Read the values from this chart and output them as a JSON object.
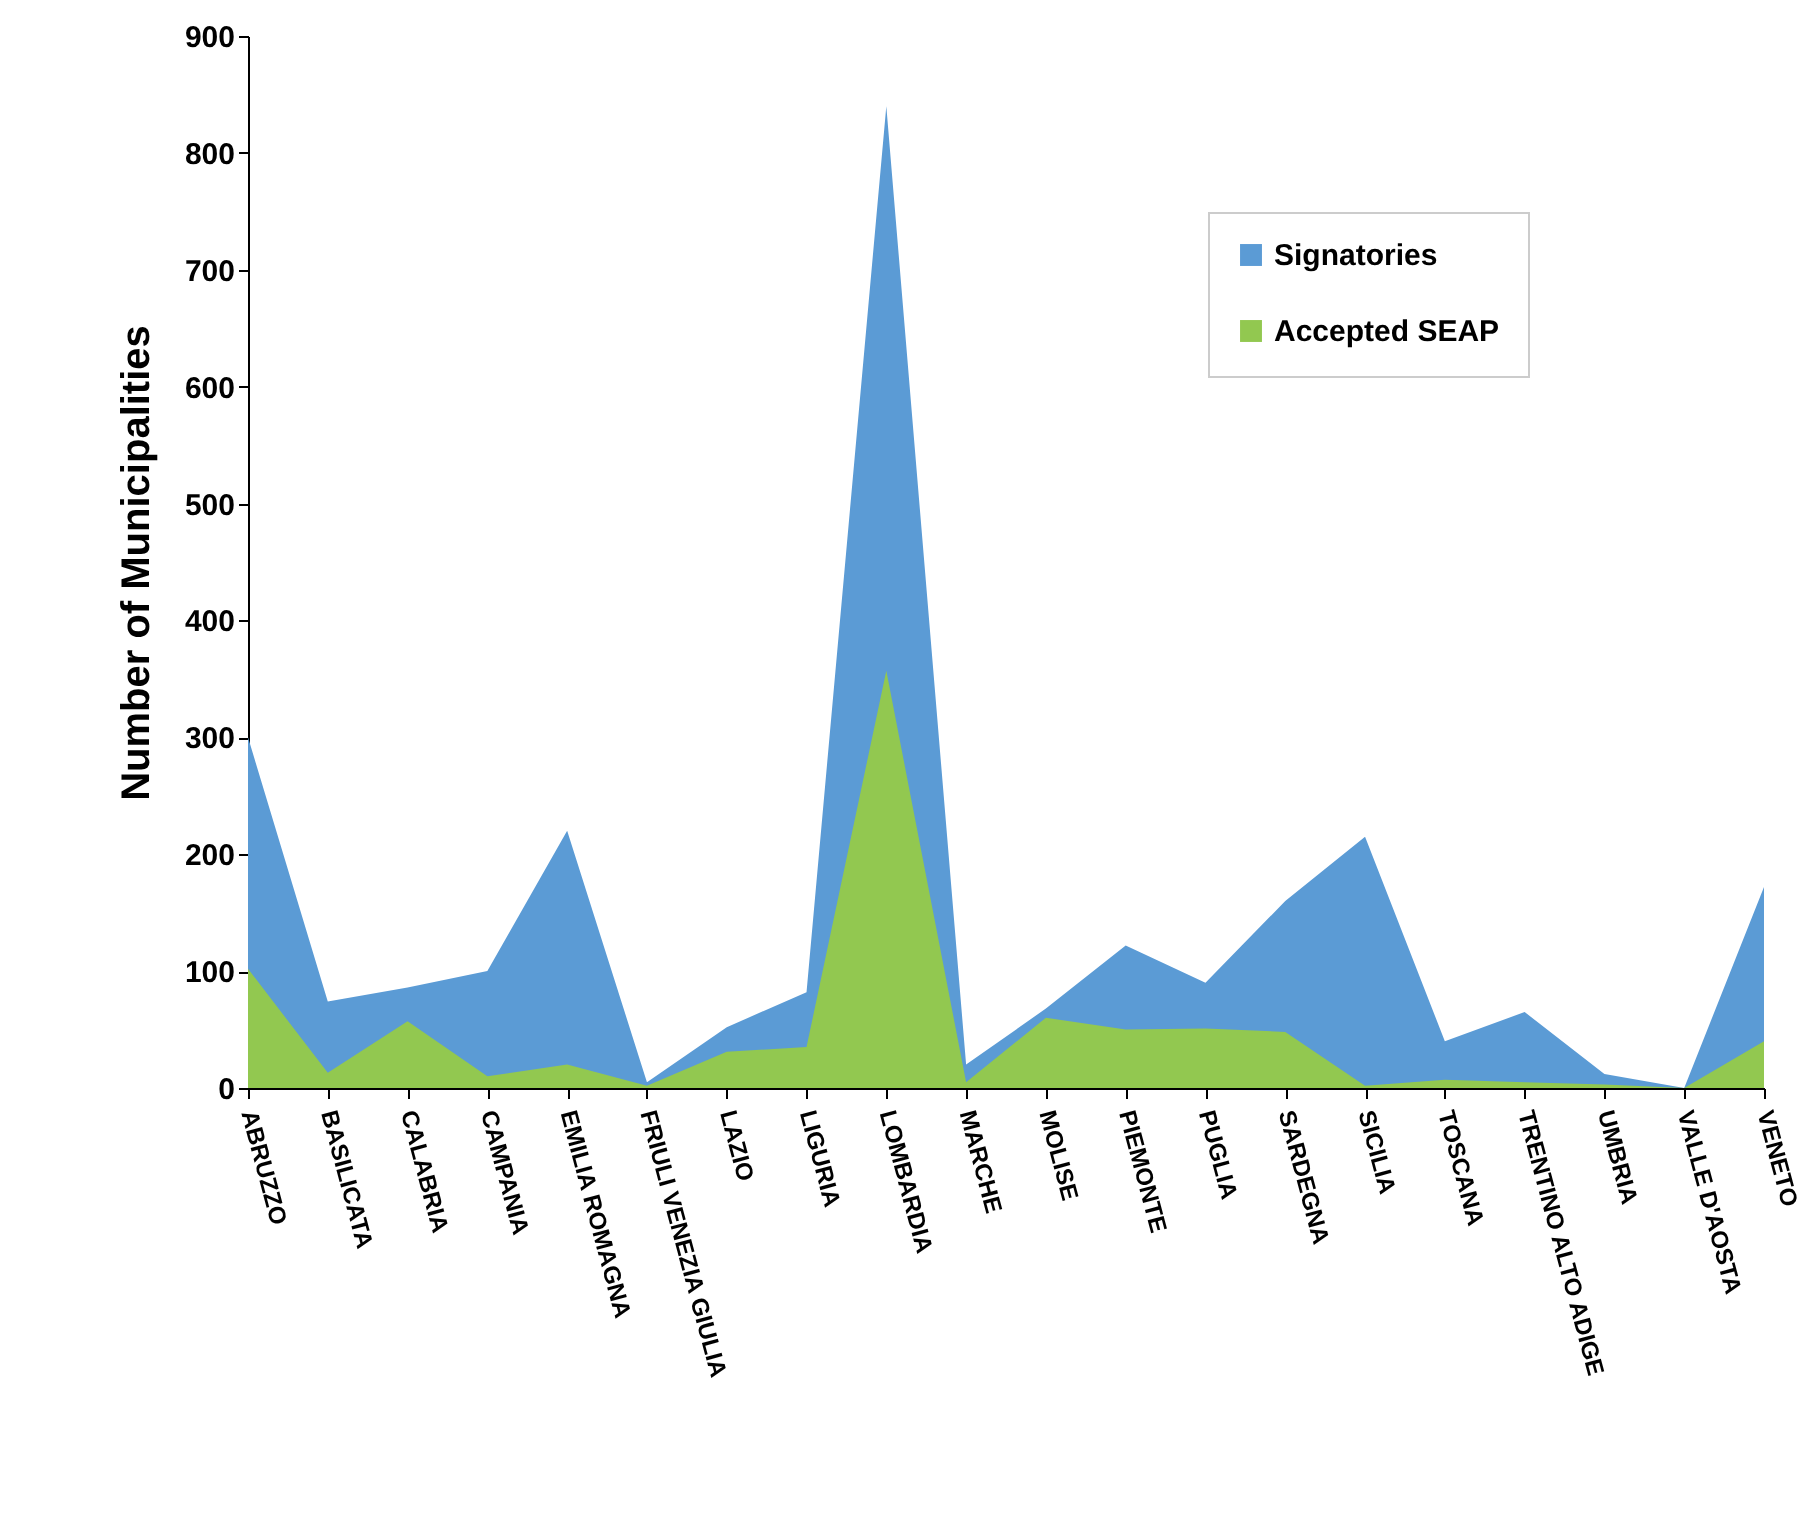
{
  "chart_data": {
    "type": "area",
    "ylabel": "Number  of  Municipalities",
    "categories": [
      "ABRUZZO",
      "BASILICATA",
      "CALABRIA",
      "CAMPANIA",
      "EMILIA ROMAGNA",
      "FRIULI VENEZIA GIULIA",
      "LAZIO",
      "LIGURIA",
      "LOMBARDIA",
      "MARCHE",
      "MOLISE",
      "PIEMONTE",
      "PUGLIA",
      "SARDEGNA",
      "SICILIA",
      "TOSCANA",
      "TRENTINO ALTO ADIGE",
      "UMBRIA",
      "VALLE D'AOSTA",
      "VENETO"
    ],
    "series": [
      {
        "name": "Signatories",
        "color": "#5b9bd5",
        "values": [
          300,
          74,
          86,
          100,
          220,
          5,
          52,
          82,
          840,
          20,
          68,
          122,
          90,
          160,
          215,
          40,
          65,
          12,
          0,
          172
        ]
      },
      {
        "name": "Accepted SEAP",
        "color": "#92c850",
        "values": [
          102,
          13,
          57,
          10,
          20,
          2,
          31,
          35,
          357,
          5,
          60,
          50,
          51,
          48,
          2,
          7,
          5,
          3,
          0,
          40
        ]
      }
    ],
    "ylim": [
      0,
      900
    ],
    "yticks": [
      0,
      100,
      200,
      300,
      400,
      500,
      600,
      700,
      800,
      900
    ],
    "grid": false,
    "legend": "top right"
  }
}
